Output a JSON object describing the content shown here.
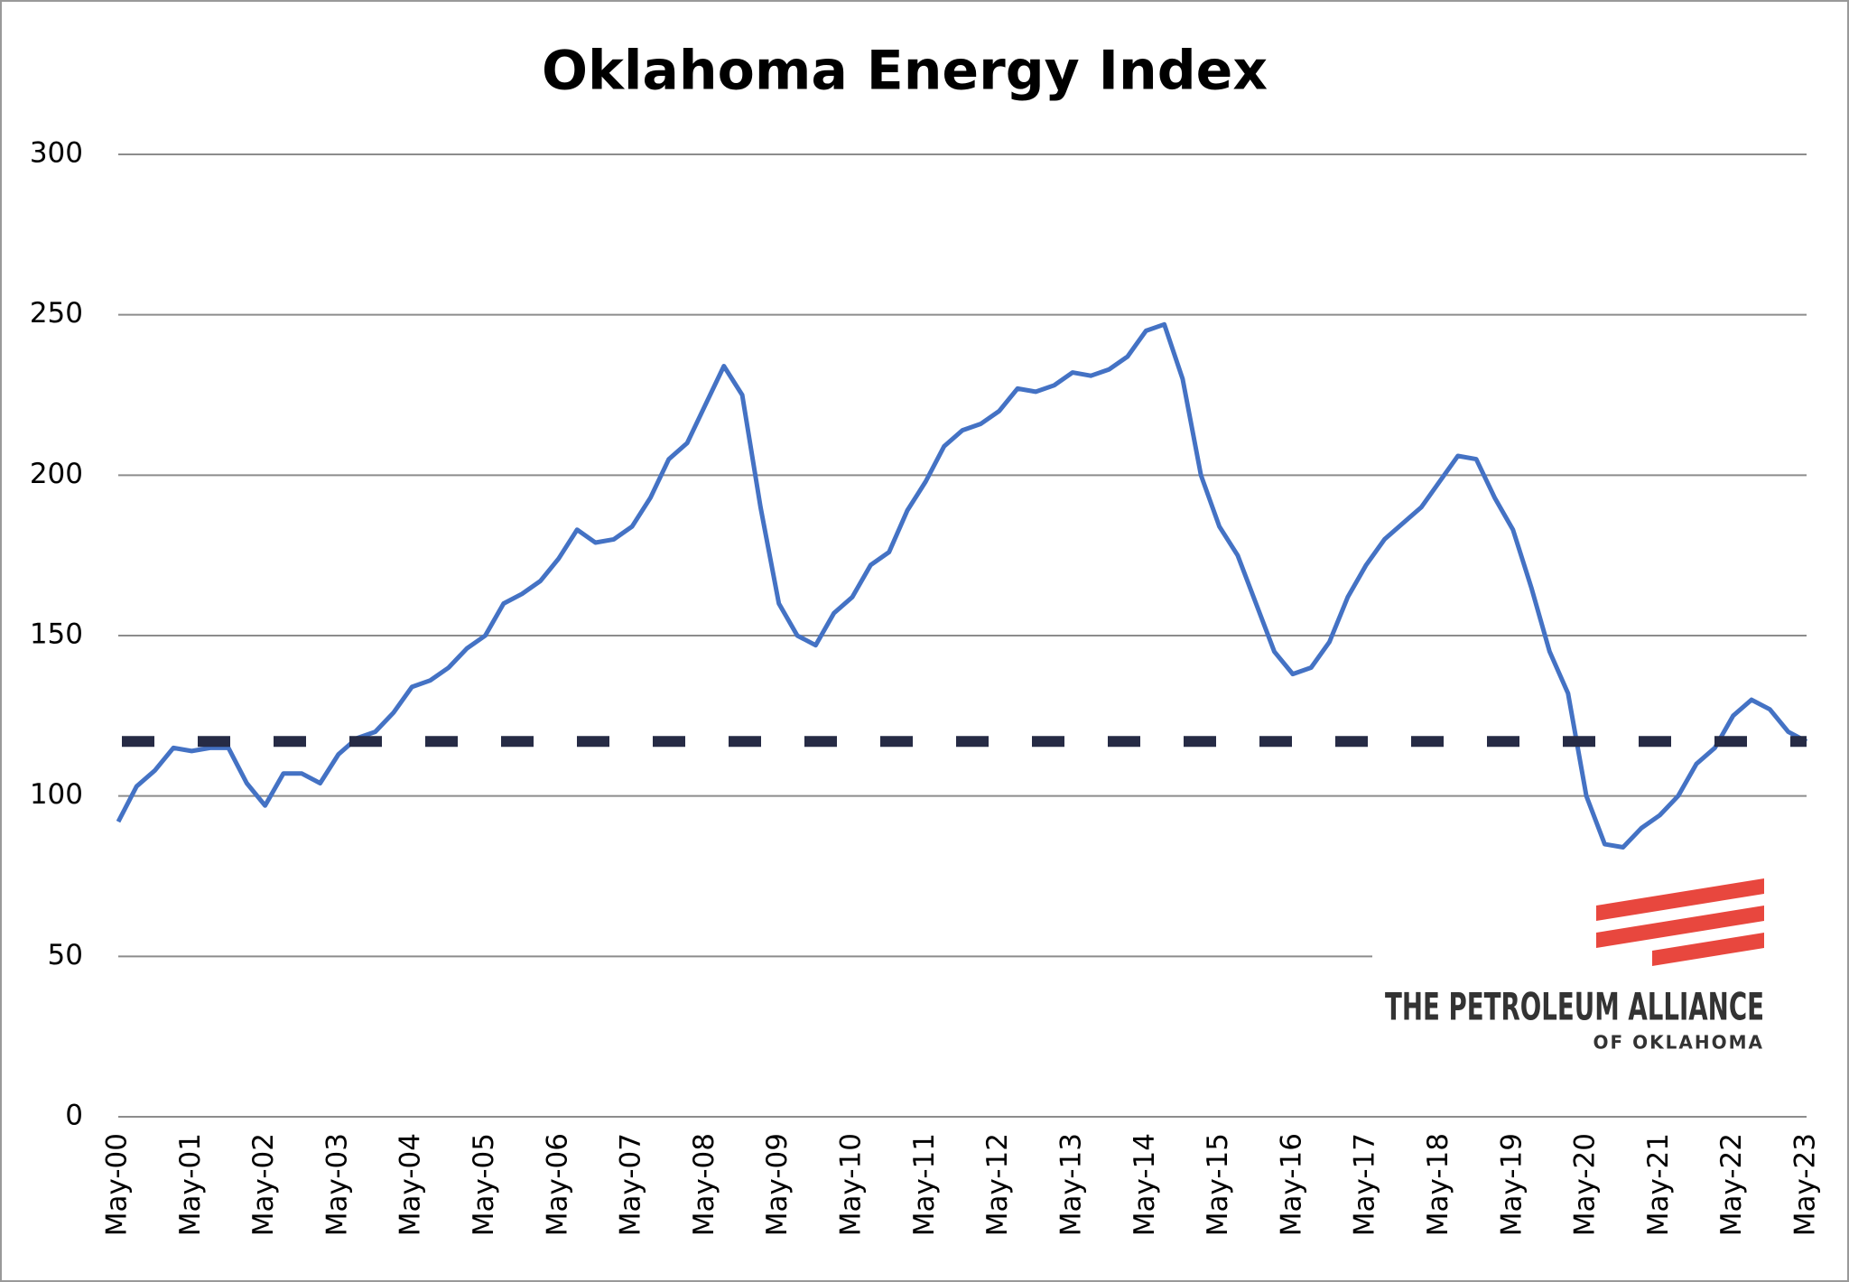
{
  "chart_data": {
    "type": "line",
    "title": "Oklahoma Energy Index",
    "categories": [
      "May-00",
      null,
      null,
      null,
      "May-01",
      null,
      null,
      null,
      "May-02",
      null,
      null,
      null,
      "May-03",
      null,
      null,
      null,
      "May-04",
      null,
      null,
      null,
      "May-05",
      null,
      null,
      null,
      "May-06",
      null,
      null,
      null,
      "May-07",
      null,
      null,
      null,
      "May-08",
      null,
      null,
      null,
      "May-09",
      null,
      null,
      null,
      "May-10",
      null,
      null,
      null,
      "May-11",
      null,
      null,
      null,
      "May-12",
      null,
      null,
      null,
      "May-13",
      null,
      null,
      null,
      "May-14",
      null,
      null,
      null,
      "May-15",
      null,
      null,
      null,
      "May-16",
      null,
      null,
      null,
      "May-17",
      null,
      null,
      null,
      "May-18",
      null,
      null,
      null,
      "May-19",
      null,
      null,
      null,
      "May-20",
      null,
      null,
      null,
      "May-21",
      null,
      null,
      null,
      "May-22",
      null,
      null,
      null,
      "May-23"
    ],
    "values": [
      92,
      103,
      108,
      115,
      114,
      115,
      115,
      104,
      97,
      107,
      107,
      104,
      113,
      118,
      120,
      126,
      134,
      136,
      140,
      146,
      150,
      160,
      163,
      167,
      174,
      183,
      179,
      180,
      184,
      193,
      205,
      210,
      222,
      234,
      225,
      190,
      160,
      150,
      147,
      157,
      162,
      172,
      176,
      189,
      198,
      209,
      214,
      216,
      220,
      227,
      226,
      228,
      232,
      231,
      233,
      237,
      245,
      247,
      230,
      200,
      184,
      175,
      160,
      145,
      138,
      140,
      148,
      162,
      172,
      180,
      185,
      190,
      198,
      206,
      205,
      193,
      183,
      165,
      145,
      132,
      100,
      85,
      84,
      90,
      94,
      100,
      110,
      115,
      125,
      130,
      127,
      120,
      117
    ],
    "color": "#4472c4",
    "reference_value": 117,
    "reference_color": "#262b45",
    "ylim": [
      0,
      300
    ],
    "yticks": [
      0,
      50,
      100,
      150,
      200,
      250,
      300
    ],
    "grid": true,
    "logo": {
      "line1": "THE PETROLEUM ALLIANCE",
      "line2": "OF OKLAHOMA"
    }
  }
}
